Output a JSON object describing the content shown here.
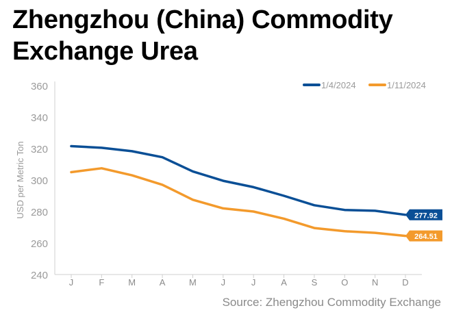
{
  "chart_data": {
    "type": "line",
    "title": "Zhengzhou (China) Commodity Exchange Urea",
    "ylabel": "USD per Metric Ton",
    "xlabel": "",
    "categories": [
      "J",
      "F",
      "M",
      "A",
      "M",
      "J",
      "J",
      "A",
      "S",
      "O",
      "N",
      "D"
    ],
    "ylim": [
      240,
      360
    ],
    "yticks": [
      240,
      260,
      280,
      300,
      320,
      340,
      360
    ],
    "grid": false,
    "legend_position": "top-right",
    "series": [
      {
        "name": "1/4/2024",
        "color": "#0a4f96",
        "values": [
          321.5,
          320.5,
          318.3,
          314.5,
          305.5,
          299.5,
          295.5,
          290.0,
          284.0,
          281.0,
          280.5,
          277.92
        ],
        "end_label": "277.92"
      },
      {
        "name": "1/11/2024",
        "color": "#f39a2c",
        "values": [
          305.0,
          307.5,
          303.0,
          297.0,
          287.5,
          282.0,
          280.0,
          275.5,
          269.5,
          267.5,
          266.5,
          264.51
        ],
        "end_label": "264.51"
      }
    ],
    "source": "Source: Zhengzhou Commodity Exchange"
  }
}
